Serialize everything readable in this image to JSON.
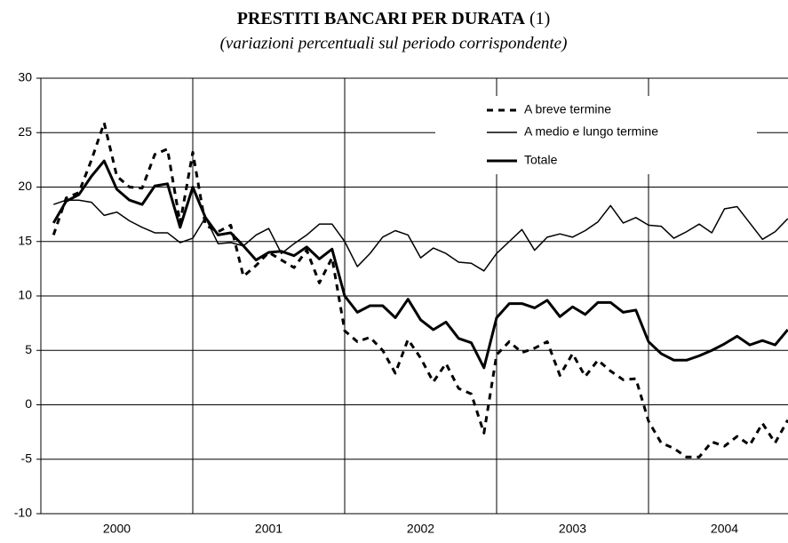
{
  "chart_data": {
    "type": "line",
    "title": "PRESTITI BANCARI PER DURATA",
    "title_note": "(1)",
    "subtitle": "(variazioni percentuali sul periodo corrispondente)",
    "categories": [
      null,
      null,
      null,
      null,
      null,
      "2000",
      null,
      null,
      null,
      null,
      null,
      null,
      null,
      null,
      null,
      null,
      null,
      "2001",
      null,
      null,
      null,
      null,
      null,
      null,
      null,
      null,
      null,
      null,
      null,
      "2002",
      null,
      null,
      null,
      null,
      null,
      null,
      null,
      null,
      null,
      null,
      null,
      "2003",
      null,
      null,
      null,
      null,
      null,
      null,
      null,
      null,
      null,
      null,
      null,
      "2004",
      null,
      null,
      null,
      null,
      null
    ],
    "ylim": [
      -10,
      30
    ],
    "yticks": [
      -10,
      -5,
      0,
      5,
      10,
      15,
      20,
      25,
      30
    ],
    "grid": true,
    "series": [
      {
        "name": "A breve termine",
        "color": "#000000",
        "line_style": "dashed",
        "values": [
          15.6,
          19,
          19.5,
          22.5,
          25.9,
          21,
          20,
          19.9,
          23,
          23.5,
          16.7,
          23.2,
          16.5,
          15.9,
          16.5,
          11.8,
          12.8,
          14,
          13.3,
          12.6,
          14.2,
          11.2,
          13.5,
          6.8,
          5.8,
          6.2,
          5,
          2.9,
          6,
          4.3,
          2.1,
          3.8,
          1.5,
          1,
          -2.6,
          4.6,
          5.8,
          4.8,
          5.2,
          5.8,
          2.7,
          4.7,
          2.6,
          4.1,
          3.1,
          2.3,
          2.4,
          -1.5,
          -3.5,
          -4,
          -4.8,
          -4.8,
          -3.4,
          -3.8,
          -2.9,
          -3.7,
          -1.7,
          -3.5,
          -1.4
        ]
      },
      {
        "name": "A medio e lungo termine",
        "color": "#000000",
        "line_style": "thin",
        "values": [
          18.4,
          18.8,
          18.8,
          18.6,
          17.4,
          17.7,
          16.9,
          16.3,
          15.8,
          15.8,
          14.9,
          15.3,
          17.2,
          14.8,
          14.9,
          14.6,
          15.6,
          16.2,
          13.9,
          14.8,
          15.6,
          16.6,
          16.6,
          15,
          12.7,
          13.9,
          15.4,
          16,
          15.6,
          13.5,
          14.4,
          13.9,
          13.1,
          13,
          12.3,
          13.9,
          15,
          16.1,
          14.2,
          15.4,
          15.7,
          15.4,
          16,
          16.8,
          18.3,
          16.7,
          17.2,
          16.5,
          16.4,
          15.3,
          15.9,
          16.6,
          15.8,
          18,
          18.2,
          16.7,
          15.2,
          15.9,
          17.1
        ]
      },
      {
        "name": "Totale",
        "color": "#000000",
        "line_style": "thick",
        "values": [
          16.7,
          18.7,
          19.3,
          21,
          22.4,
          19.8,
          18.8,
          18.4,
          20.1,
          20.3,
          16.3,
          20,
          17.2,
          15.6,
          15.8,
          14.6,
          13.3,
          14,
          14.1,
          13.7,
          14.5,
          13.4,
          14.3,
          10,
          8.5,
          9.1,
          9.1,
          8,
          9.7,
          7.8,
          6.9,
          7.6,
          6.1,
          5.7,
          3.4,
          8,
          9.3,
          9.3,
          8.9,
          9.6,
          8.1,
          9,
          8.3,
          9.4,
          9.4,
          8.5,
          8.7,
          5.8,
          4.7,
          4.1,
          4.1,
          4.5,
          5,
          5.6,
          6.3,
          5.5,
          5.9,
          5.5,
          6.9
        ]
      }
    ]
  }
}
